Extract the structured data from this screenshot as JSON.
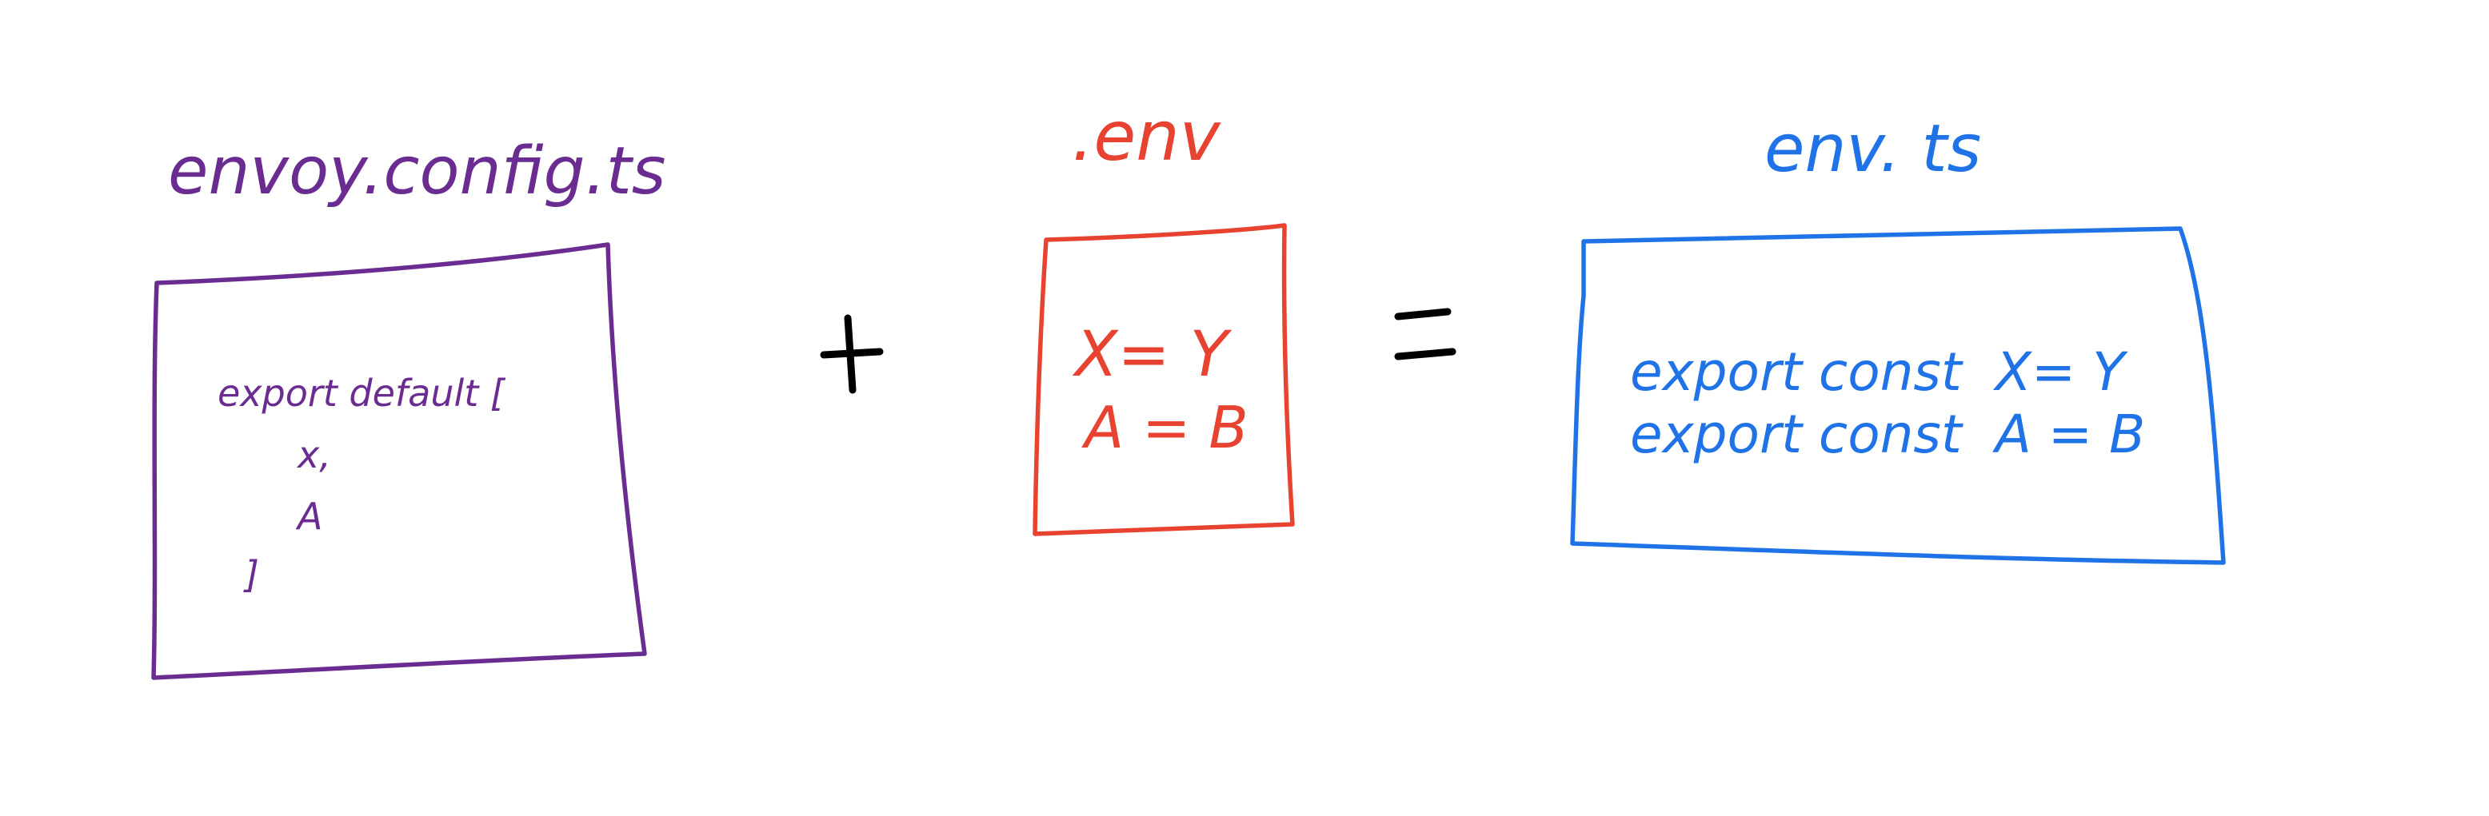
{
  "colors": {
    "config": "#6a2c91",
    "env": "#e84230",
    "output": "#1f73e6",
    "operator": "#000000"
  },
  "config": {
    "title": "envoy.config.ts",
    "lines": [
      "export default [",
      "x,",
      "A",
      "]"
    ]
  },
  "env": {
    "title": ".env",
    "lines": [
      "X= Y",
      "A = B"
    ]
  },
  "output": {
    "title": "env. ts",
    "lines": [
      "export const  X= Y",
      "export const  A = B"
    ]
  },
  "operators": {
    "plus": "plus-sign",
    "equals": "equals-sign"
  }
}
